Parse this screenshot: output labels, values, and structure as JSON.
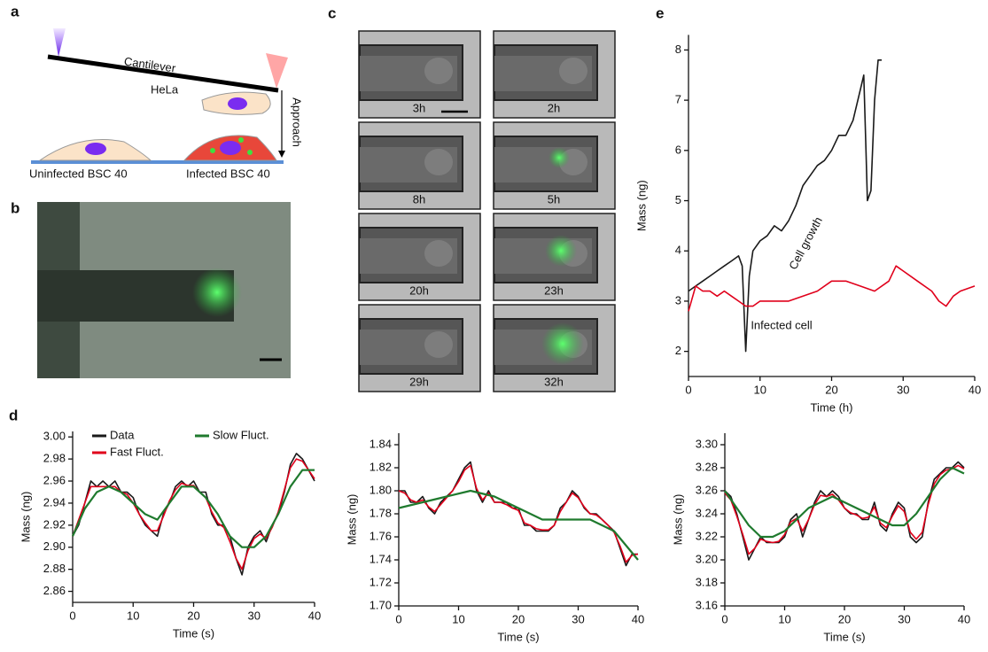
{
  "panel_labels": [
    "a",
    "b",
    "c",
    "d",
    "e"
  ],
  "diagram": {
    "cantilever": "Cantilever",
    "hela": "HeLa",
    "approach": "Approach",
    "uninfected": "Uninfected BSC 40",
    "infected": "Infected BSC 40"
  },
  "micrographs": {
    "left": [
      "3h",
      "8h",
      "20h",
      "29h"
    ],
    "right": [
      "2h",
      "5h",
      "23h",
      "32h"
    ]
  },
  "chart_data": [
    {
      "type": "line",
      "xlabel": "Time (h)",
      "ylabel": "Mass (ng)",
      "xlim": [
        0,
        40
      ],
      "ylim": [
        1.5,
        8.3
      ],
      "xticks": [
        0,
        10,
        20,
        30,
        40
      ],
      "yticks": [
        2,
        3,
        4,
        5,
        6,
        7,
        8
      ],
      "series": [
        {
          "name": "Cell growth",
          "color": "#1a1a1a",
          "x": [
            0,
            1,
            2,
            3,
            4,
            5,
            6,
            7,
            7.5,
            8,
            8.5,
            9,
            10,
            11,
            12,
            13,
            14,
            15,
            16,
            17,
            18,
            19,
            20,
            21,
            22,
            23,
            24,
            24.5,
            24.8,
            25,
            25.5,
            26,
            26.5,
            27
          ],
          "values": [
            3.2,
            3.3,
            3.4,
            3.5,
            3.6,
            3.7,
            3.8,
            3.9,
            3.7,
            2.0,
            3.5,
            4.0,
            4.2,
            4.3,
            4.5,
            4.4,
            4.6,
            4.9,
            5.3,
            5.5,
            5.7,
            5.8,
            6.0,
            6.3,
            6.3,
            6.6,
            7.2,
            7.5,
            6.0,
            5.0,
            5.2,
            7.0,
            7.8,
            7.8
          ]
        },
        {
          "name": "Infected cell",
          "color": "#e0001b",
          "x": [
            0,
            1,
            2,
            3,
            4,
            5,
            6,
            7,
            8,
            9,
            10,
            12,
            14,
            16,
            18,
            20,
            22,
            24,
            26,
            28,
            29,
            30,
            32,
            34,
            35,
            36,
            37,
            38,
            40
          ],
          "values": [
            2.8,
            3.3,
            3.2,
            3.2,
            3.1,
            3.2,
            3.1,
            3.0,
            2.9,
            2.9,
            3.0,
            3.0,
            3.0,
            3.1,
            3.2,
            3.4,
            3.4,
            3.3,
            3.2,
            3.4,
            3.7,
            3.6,
            3.4,
            3.2,
            3.0,
            2.9,
            3.1,
            3.2,
            3.3
          ]
        }
      ]
    },
    {
      "type": "line",
      "xlabel": "Time (s)",
      "ylabel": "Mass (ng)",
      "xlim": [
        0,
        40
      ],
      "ylim": [
        2.85,
        3.005
      ],
      "xticks": [
        0,
        10,
        20,
        30,
        40
      ],
      "yticks": [
        2.86,
        2.88,
        {
          "value": 2.9,
          "label": "2.90"
        },
        2.92,
        2.94,
        2.96,
        2.98,
        {
          "value": 3,
          "label": "3.00"
        }
      ],
      "series": [
        {
          "name": "Data",
          "color": "#1a1a1a",
          "x": [
            0,
            1,
            2,
            3,
            4,
            5,
            6,
            7,
            8,
            9,
            10,
            11,
            12,
            13,
            14,
            15,
            16,
            17,
            18,
            19,
            20,
            21,
            22,
            23,
            24,
            25,
            26,
            27,
            28,
            29,
            30,
            31,
            32,
            33,
            34,
            35,
            36,
            37,
            38,
            39,
            40
          ],
          "values": [
            2.91,
            2.92,
            2.94,
            2.96,
            2.955,
            2.96,
            2.955,
            2.96,
            2.95,
            2.95,
            2.945,
            2.93,
            2.92,
            2.915,
            2.91,
            2.93,
            2.94,
            2.955,
            2.96,
            2.955,
            2.96,
            2.95,
            2.95,
            2.93,
            2.92,
            2.92,
            2.91,
            2.89,
            2.875,
            2.9,
            2.91,
            2.915,
            2.905,
            2.92,
            2.93,
            2.95,
            2.975,
            2.985,
            2.98,
            2.97,
            2.96
          ]
        },
        {
          "name": "Fast Fluct.",
          "color": "#e0001b",
          "x": [
            0,
            1,
            2,
            3,
            4,
            5,
            6,
            7,
            8,
            9,
            10,
            11,
            12,
            13,
            14,
            15,
            16,
            17,
            18,
            19,
            20,
            21,
            22,
            23,
            24,
            25,
            26,
            27,
            28,
            29,
            30,
            31,
            32,
            33,
            34,
            35,
            36,
            37,
            38,
            39,
            40
          ],
          "values": [
            2.91,
            2.925,
            2.94,
            2.955,
            2.955,
            2.955,
            2.955,
            2.955,
            2.95,
            2.948,
            2.94,
            2.93,
            2.922,
            2.915,
            2.915,
            2.928,
            2.942,
            2.952,
            2.958,
            2.956,
            2.956,
            2.95,
            2.945,
            2.932,
            2.922,
            2.918,
            2.905,
            2.89,
            2.88,
            2.897,
            2.908,
            2.912,
            2.908,
            2.918,
            2.932,
            2.952,
            2.972,
            2.98,
            2.978,
            2.97,
            2.962
          ]
        },
        {
          "name": "Slow Fluct.",
          "color": "#1f7a2e",
          "x": [
            0,
            2,
            4,
            6,
            8,
            10,
            12,
            14,
            16,
            18,
            20,
            22,
            24,
            26,
            28,
            30,
            32,
            34,
            36,
            38,
            40
          ],
          "values": [
            2.91,
            2.935,
            2.95,
            2.955,
            2.95,
            2.94,
            2.93,
            2.925,
            2.94,
            2.955,
            2.955,
            2.945,
            2.93,
            2.91,
            2.9,
            2.9,
            2.91,
            2.93,
            2.955,
            2.97,
            2.97
          ]
        }
      ]
    },
    {
      "type": "line",
      "xlabel": "Time (s)",
      "ylabel": "Mass (ng)",
      "xlim": [
        0,
        40
      ],
      "ylim": [
        1.7,
        1.85
      ],
      "xticks": [
        0,
        10,
        20,
        30,
        40
      ],
      "yticks": [
        {
          "value": 1.7,
          "label": "1.70"
        },
        1.72,
        1.74,
        1.76,
        1.78,
        {
          "value": 1.8,
          "label": "1.80"
        },
        1.82,
        1.84
      ],
      "series": [
        {
          "color": "#1a1a1a",
          "x": [
            0,
            1,
            2,
            3,
            4,
            5,
            6,
            7,
            8,
            9,
            10,
            11,
            12,
            13,
            14,
            15,
            16,
            17,
            18,
            19,
            20,
            21,
            22,
            23,
            24,
            25,
            26,
            27,
            28,
            29,
            30,
            31,
            32,
            33,
            34,
            35,
            36,
            37,
            38,
            39,
            40
          ],
          "values": [
            1.8,
            1.8,
            1.79,
            1.79,
            1.795,
            1.785,
            1.78,
            1.79,
            1.795,
            1.8,
            1.81,
            1.82,
            1.825,
            1.8,
            1.79,
            1.8,
            1.79,
            1.79,
            1.79,
            1.785,
            1.785,
            1.77,
            1.77,
            1.765,
            1.765,
            1.765,
            1.77,
            1.785,
            1.79,
            1.8,
            1.795,
            1.785,
            1.78,
            1.78,
            1.775,
            1.77,
            1.765,
            1.75,
            1.735,
            1.745,
            1.745
          ]
        },
        {
          "color": "#e0001b",
          "x": [
            0,
            1,
            2,
            3,
            4,
            5,
            6,
            7,
            8,
            9,
            10,
            11,
            12,
            13,
            14,
            15,
            16,
            17,
            18,
            19,
            20,
            21,
            22,
            23,
            24,
            25,
            26,
            27,
            28,
            29,
            30,
            31,
            32,
            33,
            34,
            35,
            36,
            37,
            38,
            39,
            40
          ],
          "values": [
            1.8,
            1.798,
            1.792,
            1.79,
            1.792,
            1.786,
            1.782,
            1.788,
            1.794,
            1.8,
            1.808,
            1.818,
            1.822,
            1.802,
            1.792,
            1.798,
            1.79,
            1.79,
            1.788,
            1.785,
            1.783,
            1.772,
            1.77,
            1.767,
            1.766,
            1.766,
            1.77,
            1.782,
            1.79,
            1.798,
            1.794,
            1.786,
            1.78,
            1.779,
            1.775,
            1.77,
            1.764,
            1.752,
            1.738,
            1.744,
            1.745
          ]
        },
        {
          "color": "#1f7a2e",
          "x": [
            0,
            4,
            8,
            12,
            16,
            20,
            24,
            28,
            32,
            36,
            40
          ],
          "values": [
            1.785,
            1.79,
            1.795,
            1.8,
            1.795,
            1.785,
            1.775,
            1.775,
            1.775,
            1.765,
            1.74
          ]
        }
      ]
    },
    {
      "type": "line",
      "xlabel": "Time (s)",
      "ylabel": "Mass (ng)",
      "xlim": [
        0,
        40
      ],
      "ylim": [
        3.16,
        3.31
      ],
      "xticks": [
        0,
        10,
        20,
        30,
        40
      ],
      "yticks": [
        3.16,
        3.18,
        {
          "value": 3.2,
          "label": "3.20"
        },
        3.22,
        3.24,
        3.26,
        3.28,
        {
          "value": 3.3,
          "label": "3.30"
        }
      ],
      "series": [
        {
          "color": "#1a1a1a",
          "x": [
            0,
            1,
            2,
            3,
            4,
            5,
            6,
            7,
            8,
            9,
            10,
            11,
            12,
            13,
            14,
            15,
            16,
            17,
            18,
            19,
            20,
            21,
            22,
            23,
            24,
            25,
            26,
            27,
            28,
            29,
            30,
            31,
            32,
            33,
            34,
            35,
            36,
            37,
            38,
            39,
            40
          ],
          "values": [
            3.26,
            3.255,
            3.24,
            3.22,
            3.2,
            3.21,
            3.22,
            3.215,
            3.215,
            3.215,
            3.22,
            3.235,
            3.24,
            3.22,
            3.235,
            3.25,
            3.26,
            3.255,
            3.26,
            3.255,
            3.245,
            3.24,
            3.24,
            3.235,
            3.235,
            3.25,
            3.23,
            3.225,
            3.24,
            3.25,
            3.245,
            3.22,
            3.215,
            3.22,
            3.25,
            3.27,
            3.275,
            3.28,
            3.28,
            3.285,
            3.28
          ]
        },
        {
          "color": "#e0001b",
          "x": [
            0,
            1,
            2,
            3,
            4,
            5,
            6,
            7,
            8,
            9,
            10,
            11,
            12,
            13,
            14,
            15,
            16,
            17,
            18,
            19,
            20,
            21,
            22,
            23,
            24,
            25,
            26,
            27,
            28,
            29,
            30,
            31,
            32,
            33,
            34,
            35,
            36,
            37,
            38,
            39,
            40
          ],
          "values": [
            3.258,
            3.252,
            3.238,
            3.222,
            3.205,
            3.21,
            3.218,
            3.216,
            3.215,
            3.216,
            3.222,
            3.233,
            3.236,
            3.225,
            3.235,
            3.248,
            3.256,
            3.255,
            3.257,
            3.252,
            3.245,
            3.241,
            3.239,
            3.236,
            3.237,
            3.246,
            3.232,
            3.228,
            3.238,
            3.247,
            3.242,
            3.224,
            3.218,
            3.224,
            3.248,
            3.266,
            3.274,
            3.278,
            3.279,
            3.282,
            3.279
          ]
        },
        {
          "color": "#1f7a2e",
          "x": [
            0,
            2,
            4,
            6,
            8,
            10,
            12,
            14,
            16,
            18,
            20,
            22,
            24,
            26,
            28,
            30,
            32,
            34,
            36,
            38,
            40
          ],
          "values": [
            3.26,
            3.245,
            3.23,
            3.22,
            3.22,
            3.225,
            3.235,
            3.245,
            3.25,
            3.255,
            3.25,
            3.245,
            3.24,
            3.235,
            3.23,
            3.23,
            3.24,
            3.255,
            3.27,
            3.28,
            3.275
          ]
        }
      ]
    }
  ]
}
